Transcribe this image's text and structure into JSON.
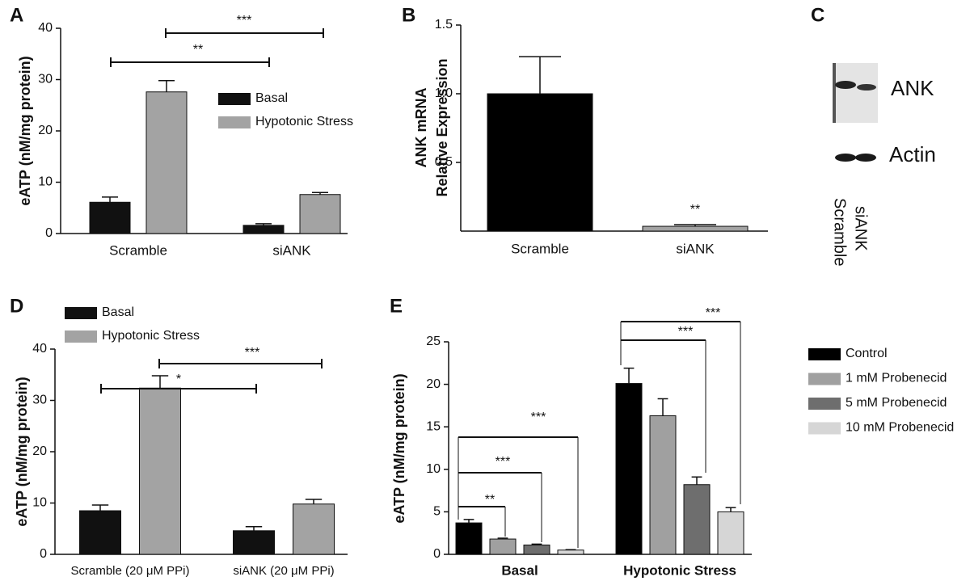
{
  "chart_data": [
    {
      "panel": "A",
      "type": "bar",
      "ylabel": "eATP (nM/mg protein)",
      "categories": [
        "Scramble",
        "siANK"
      ],
      "series": [
        {
          "name": "Basal",
          "color": "#111111",
          "values": [
            6.1,
            1.6
          ],
          "errors": [
            1.0,
            0.3
          ]
        },
        {
          "name": "Hypotonic Stress",
          "color": "#a3a3a3",
          "values": [
            27.6,
            7.6
          ],
          "errors": [
            2.2,
            0.4
          ]
        }
      ],
      "ylim": [
        0,
        40
      ],
      "yticks": [
        0,
        10,
        20,
        30,
        40
      ],
      "annotations": [
        "**",
        "***"
      ]
    },
    {
      "panel": "B",
      "type": "bar",
      "ylabel": [
        "ANK mRNA",
        "Relative Expression"
      ],
      "categories": [
        "Scramble",
        "siANK"
      ],
      "values": [
        1.0,
        0.035
      ],
      "errors": [
        0.27,
        0.012
      ],
      "colors": [
        "#000000",
        "#a3a3a3"
      ],
      "ylim": [
        0,
        1.5
      ],
      "yticks": [
        0.5,
        {
          "value": 1,
          "label": "1.0"
        },
        1.5
      ],
      "annotations": [
        "**"
      ]
    },
    {
      "panel": "D",
      "type": "bar",
      "ylabel": "eATP (nM/mg protein)",
      "categories": [
        "Scramble (20  μM PPi)",
        "siANK (20  μM PPi)"
      ],
      "series": [
        {
          "name": "Basal",
          "color": "#111111",
          "values": [
            8.5,
            4.6
          ],
          "errors": [
            1.1,
            0.8
          ]
        },
        {
          "name": "Hypotonic Stress",
          "color": "#a3a3a3",
          "values": [
            32.4,
            9.8
          ],
          "errors": [
            2.4,
            0.9
          ]
        }
      ],
      "ylim": [
        0,
        40
      ],
      "yticks": [
        0,
        10,
        20,
        30,
        40
      ],
      "annotations": [
        "*",
        "***"
      ]
    },
    {
      "panel": "E",
      "type": "bar",
      "ylabel": "eATP (nM/mg protein)",
      "categories": [
        "Basal",
        "Hypotonic Stress"
      ],
      "series": [
        {
          "name": "Control",
          "color": "#000000",
          "values": [
            3.7,
            20.1
          ],
          "errors": [
            0.4,
            1.8
          ]
        },
        {
          "name": "1 mM Probenecid",
          "color": "#a0a0a0",
          "values": [
            1.8,
            16.3
          ],
          "errors": [
            0.1,
            2.0
          ]
        },
        {
          "name": "5 mM Probenecid",
          "color": "#6e6e6e",
          "values": [
            1.1,
            8.2
          ],
          "errors": [
            0.1,
            0.9
          ]
        },
        {
          "name": "10 mM Probenecid",
          "color": "#d6d6d6",
          "values": [
            0.5,
            5.0
          ],
          "errors": [
            0.05,
            0.5
          ]
        }
      ],
      "ylim": [
        0,
        25
      ],
      "yticks": [
        0,
        5,
        10,
        15,
        20,
        25
      ],
      "annotations": [
        "**",
        "***",
        "***",
        "***",
        "***"
      ]
    }
  ],
  "blot": {
    "panel": "C",
    "bands": [
      "ANK",
      "Actin"
    ],
    "lanes": [
      "Scramble",
      "siANK"
    ]
  }
}
